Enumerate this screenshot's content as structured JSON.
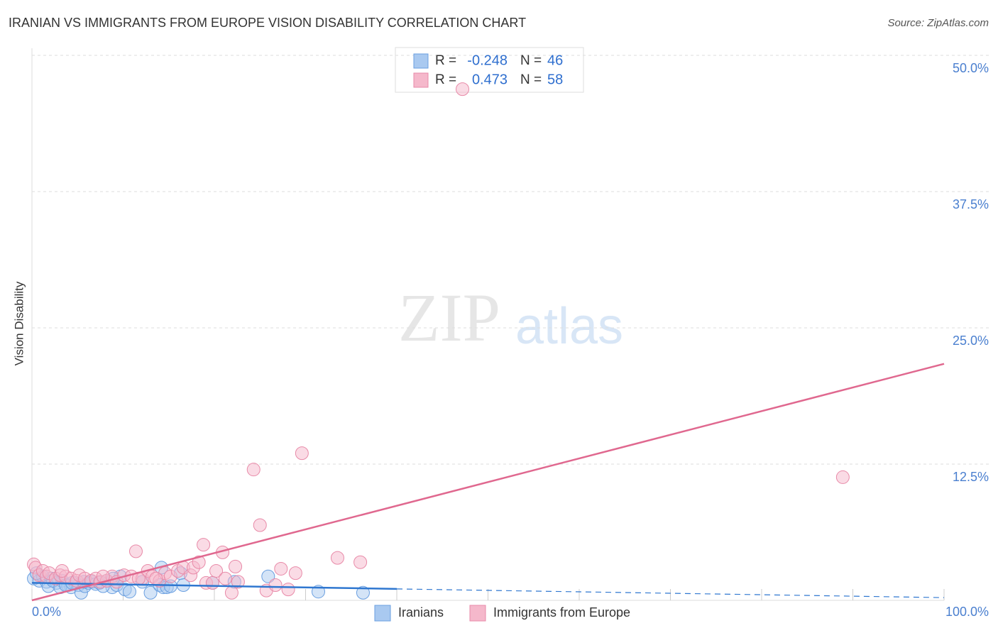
{
  "chart_data": {
    "type": "scatter",
    "title": "IRANIAN VS IMMIGRANTS FROM EUROPE VISION DISABILITY CORRELATION CHART",
    "source": "Source: ZipAtlas.com",
    "y_label": "Vision Disability",
    "watermark": {
      "zip": "ZIP",
      "atlas": "atlas"
    },
    "stat_labels": {
      "r": "R =",
      "n": "N ="
    },
    "xlim": [
      0,
      100
    ],
    "ylim": [
      0,
      50
    ],
    "xticks": [
      {
        "value": 0,
        "label": "0.0%"
      },
      {
        "value": 100,
        "label": "100.0%"
      }
    ],
    "xminor_ticks": [
      10,
      20,
      30,
      40,
      50,
      60,
      70,
      80,
      90
    ],
    "yticks": [
      {
        "value": 12.5,
        "label": "12.5%"
      },
      {
        "value": 25,
        "label": "25.0%"
      },
      {
        "value": 37.5,
        "label": "37.5%"
      },
      {
        "value": 50,
        "label": "50.0%"
      }
    ],
    "grid": true,
    "series": [
      {
        "name": "Iranians",
        "color": "#6a9fe0",
        "fill": "#a9c9f0",
        "line_color": "#2f77d0",
        "r": -0.248,
        "n": 46,
        "x": [
          0.2,
          0.8,
          1.2,
          1.6,
          2.1,
          2.7,
          3.3,
          3.9,
          4.3,
          4.7,
          5.1,
          5.4,
          5.8,
          6.2,
          6.6,
          7.0,
          7.4,
          8.2,
          8.8,
          9.3,
          9.7,
          10.2,
          10.7,
          12.1,
          13.0,
          14.0,
          14.4,
          14.8,
          15.2,
          14.2,
          16.3,
          16.6,
          19.8,
          22.2,
          25.9,
          31.4,
          36.3,
          0.5,
          1.8,
          2.3,
          3.1,
          3.7,
          4.4,
          7.8,
          8.9,
          5.7
        ],
        "values": [
          2.0,
          1.8,
          2.2,
          1.7,
          2.0,
          1.6,
          1.8,
          1.4,
          1.2,
          1.6,
          1.4,
          0.7,
          1.3,
          1.6,
          1.7,
          1.5,
          1.6,
          1.8,
          1.2,
          1.4,
          2.2,
          1.0,
          0.8,
          1.7,
          0.7,
          1.4,
          1.2,
          1.2,
          1.3,
          3.0,
          2.5,
          1.4,
          1.6,
          1.7,
          2.2,
          0.8,
          0.7,
          2.5,
          1.3,
          1.8,
          1.2,
          1.4,
          1.6,
          1.3,
          2.0,
          1.7
        ],
        "trend": {
          "x": [
            0,
            40
          ],
          "y": [
            1.6,
            1.05
          ]
        },
        "trend_extension": {
          "x": [
            40,
            100
          ],
          "y": [
            1.05,
            0.25
          ]
        }
      },
      {
        "name": "Immigrants from Europe",
        "color": "#e88aa8",
        "fill": "#f5b8cb",
        "line_color": "#e0688f",
        "r": 0.473,
        "n": 58,
        "x": [
          0.2,
          0.4,
          0.8,
          1.2,
          1.6,
          1.9,
          2.6,
          3.1,
          3.7,
          4.3,
          4.9,
          5.2,
          5.8,
          6.5,
          7.0,
          7.5,
          8.2,
          8.8,
          9.3,
          10.1,
          10.9,
          11.4,
          12.1,
          12.7,
          13.2,
          14.0,
          14.6,
          15.2,
          16.0,
          16.6,
          17.4,
          17.7,
          18.3,
          18.8,
          19.1,
          19.8,
          20.2,
          20.9,
          21.2,
          21.9,
          22.3,
          22.6,
          24.3,
          25.0,
          25.7,
          26.7,
          27.3,
          28.1,
          28.9,
          29.6,
          33.5,
          36.0,
          47.2,
          88.9,
          3.3,
          7.8,
          11.7,
          13.6
        ],
        "values": [
          3.3,
          3.0,
          2.3,
          2.7,
          2.2,
          2.5,
          2.0,
          2.3,
          2.2,
          2.0,
          1.8,
          2.3,
          2.0,
          1.8,
          2.0,
          1.7,
          1.8,
          2.2,
          1.7,
          2.3,
          2.2,
          4.5,
          2.0,
          2.7,
          2.2,
          1.8,
          2.5,
          2.2,
          2.7,
          3.0,
          2.3,
          3.0,
          3.5,
          5.1,
          1.6,
          1.6,
          2.7,
          4.4,
          2.0,
          0.7,
          3.1,
          1.7,
          12.0,
          6.9,
          0.9,
          1.4,
          2.9,
          1.0,
          2.5,
          13.5,
          3.9,
          3.5,
          46.9,
          11.3,
          2.7,
          2.2,
          2.0,
          2.0
        ],
        "trend": {
          "x": [
            0,
            100
          ],
          "y": [
            0,
            21.7
          ]
        }
      }
    ]
  }
}
